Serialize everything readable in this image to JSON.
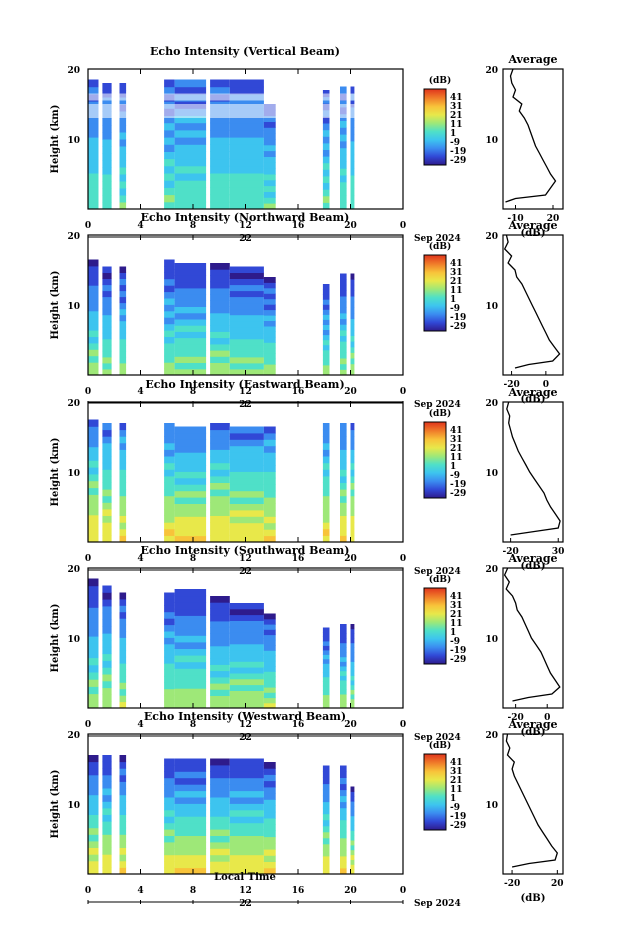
{
  "colors": {
    "colormap": [
      "#2e1b8c",
      "#3148d6",
      "#3b8cf0",
      "#3dc4ef",
      "#4fe0c8",
      "#9ee878",
      "#e8e84a",
      "#f8c33a",
      "#f07e2a",
      "#e0341c"
    ],
    "frame": "#000000",
    "profile": "#000000"
  },
  "chart_data": [
    {
      "type": "heatmap",
      "title": "Echo Intensity (Vertical Beam)",
      "ylabel": "Height (km)",
      "ylim": [
        0,
        20
      ],
      "yticks": [
        "20",
        "10"
      ],
      "xlim": [
        0,
        24
      ],
      "xticks": [
        "0",
        "4",
        "8",
        "12",
        "16",
        "20",
        "0"
      ],
      "date_day": "22",
      "date_month": "Sep 2024",
      "colorbar_unit": "(dB)",
      "colorbar_ticks": [
        "41",
        "31",
        "21",
        "11",
        "1",
        "-9",
        "-19",
        "-29"
      ],
      "clim": [
        -29,
        41
      ],
      "segments": [
        [
          0,
          0.8,
          18.5
        ],
        [
          1.1,
          1.8,
          18
        ],
        [
          2.4,
          2.9,
          18
        ],
        [
          5.8,
          6.6,
          18.5
        ],
        [
          6.6,
          9.0,
          18.5
        ],
        [
          9.3,
          10.8,
          18.5
        ],
        [
          10.8,
          13.4,
          18.5
        ],
        [
          13.4,
          14.3,
          15
        ],
        [
          17.9,
          18.4,
          17
        ],
        [
          19.2,
          19.7,
          17.5
        ],
        [
          20.0,
          20.3,
          17.5
        ]
      ],
      "bottom_db": 5,
      "top_db": -18,
      "gap_bands": [
        [
          13,
          15
        ],
        [
          15.5,
          16.5
        ]
      ],
      "profile": {
        "title": "Average",
        "xlabel": "(dB)",
        "xticks": [
          "-10",
          "20"
        ],
        "tick_values": [
          -10,
          20
        ],
        "xlim": [
          -20,
          28
        ],
        "x": [
          -12,
          -14,
          -13,
          -10,
          -12,
          -5,
          -7,
          -3,
          0,
          2,
          4,
          6,
          9,
          12,
          15,
          18,
          22,
          18,
          14,
          -10,
          -18
        ],
        "y": [
          20,
          19,
          18,
          17,
          16,
          15,
          14,
          13,
          12,
          11,
          10,
          9,
          8,
          7,
          6,
          5,
          4,
          3,
          2,
          1.5,
          1
        ]
      }
    },
    {
      "type": "heatmap",
      "title": "Echo Intensity (Northward Beam)",
      "ylabel": "Height (km)",
      "ylim": [
        0,
        20
      ],
      "yticks": [
        "20",
        "10"
      ],
      "xlim": [
        0,
        24
      ],
      "xticks": [
        "0",
        "4",
        "8",
        "12",
        "16",
        "20",
        "0"
      ],
      "date_day": "22",
      "date_month": "Sep 2024",
      "colorbar_unit": "(dB)",
      "colorbar_ticks": [
        "41",
        "31",
        "21",
        "11",
        "1",
        "-9",
        "-19",
        "-29"
      ],
      "clim": [
        -29,
        41
      ],
      "segments": [
        [
          0,
          0.8,
          16.5
        ],
        [
          1.1,
          1.8,
          15.5
        ],
        [
          2.4,
          2.9,
          15.5
        ],
        [
          5.8,
          6.6,
          16.5
        ],
        [
          6.6,
          9.0,
          16
        ],
        [
          9.3,
          10.8,
          16
        ],
        [
          10.8,
          13.4,
          15.5
        ],
        [
          13.4,
          14.3,
          14
        ],
        [
          17.9,
          18.4,
          13
        ],
        [
          19.2,
          19.7,
          14.5
        ],
        [
          20.0,
          20.3,
          14.5
        ]
      ],
      "bottom_db": 10,
      "top_db": -22,
      "gap_bands": [],
      "profile": {
        "title": "Average",
        "xlabel": "(dB)",
        "xticks": [
          "-20",
          "0"
        ],
        "tick_values": [
          -20,
          0
        ],
        "xlim": [
          -25,
          10
        ],
        "x": [
          -23,
          -22,
          -24,
          -20,
          -22,
          -18,
          -17,
          -14,
          -12,
          -10,
          -8,
          -6,
          -4,
          -2,
          0,
          2,
          5,
          8,
          4,
          -10,
          -18
        ],
        "y": [
          20,
          19,
          18,
          17,
          16,
          15,
          14,
          13,
          12,
          11,
          10,
          9,
          8,
          7,
          6,
          5,
          4,
          3,
          2,
          1.5,
          1
        ]
      }
    },
    {
      "type": "heatmap",
      "title": "Echo Intensity (Eastward Beam)",
      "ylabel": "Height (km)",
      "ylim": [
        0,
        20
      ],
      "yticks": [
        "20",
        "10"
      ],
      "xlim": [
        0,
        24
      ],
      "xticks": [
        "0",
        "4",
        "8",
        "12",
        "16",
        "20",
        "0"
      ],
      "date_day": "22",
      "date_month": "Sep 2024",
      "colorbar_unit": "(dB)",
      "colorbar_ticks": [
        "41",
        "31",
        "21",
        "11",
        "1",
        "-9",
        "-19",
        "-29"
      ],
      "clim": [
        -29,
        41
      ],
      "segments": [
        [
          0,
          0.8,
          17.5
        ],
        [
          1.1,
          1.8,
          17
        ],
        [
          2.4,
          2.9,
          17
        ],
        [
          5.8,
          6.6,
          17
        ],
        [
          6.6,
          9.0,
          16.5
        ],
        [
          9.3,
          10.8,
          17
        ],
        [
          10.8,
          13.4,
          16.5
        ],
        [
          13.4,
          14.3,
          16.5
        ],
        [
          17.9,
          18.4,
          17
        ],
        [
          19.2,
          19.7,
          17
        ],
        [
          20.0,
          20.3,
          17
        ]
      ],
      "bottom_db": 20,
      "top_db": -15,
      "gap_bands": [],
      "profile": {
        "title": "Average",
        "xlabel": "(dB)",
        "xticks": [
          "-20",
          "30"
        ],
        "tick_values": [
          -20,
          30
        ],
        "xlim": [
          -28,
          35
        ],
        "x": [
          -22,
          -24,
          -21,
          -22,
          -20,
          -18,
          -15,
          -12,
          -8,
          -4,
          0,
          5,
          10,
          15,
          18,
          22,
          27,
          32,
          30,
          5,
          -20
        ],
        "y": [
          20,
          19,
          18,
          17,
          16,
          15,
          14,
          13,
          12,
          11,
          10,
          9,
          8,
          7,
          6,
          5,
          4,
          3,
          2,
          1.5,
          1
        ]
      }
    },
    {
      "type": "heatmap",
      "title": "Echo Intensity (Southward Beam)",
      "ylabel": "Height (km)",
      "ylim": [
        0,
        20
      ],
      "yticks": [
        "20",
        "10"
      ],
      "xlim": [
        0,
        24
      ],
      "xticks": [
        "0",
        "4",
        "8",
        "12",
        "16",
        "20",
        "0"
      ],
      "date_day": "22",
      "date_month": "Sep 2024",
      "colorbar_unit": "(dB)",
      "colorbar_ticks": [
        "41",
        "31",
        "21",
        "11",
        "1",
        "-9",
        "-19",
        "-29"
      ],
      "clim": [
        -29,
        41
      ],
      "segments": [
        [
          0,
          0.8,
          18.5
        ],
        [
          1.1,
          1.8,
          17.5
        ],
        [
          2.4,
          2.9,
          16.5
        ],
        [
          5.8,
          6.6,
          16.5
        ],
        [
          6.6,
          9.0,
          17
        ],
        [
          9.3,
          10.8,
          16
        ],
        [
          10.8,
          13.4,
          15
        ],
        [
          13.4,
          14.3,
          13.5
        ],
        [
          17.9,
          18.4,
          11.5
        ],
        [
          19.2,
          19.7,
          12
        ],
        [
          20.0,
          20.3,
          12
        ]
      ],
      "bottom_db": 12,
      "top_db": -22,
      "gap_bands": [],
      "profile": {
        "title": "Average",
        "xlabel": "(dB)",
        "xticks": [
          "-20",
          "0"
        ],
        "tick_values": [
          -20,
          0
        ],
        "xlim": [
          -28,
          10
        ],
        "x": [
          -25,
          -27,
          -24,
          -26,
          -22,
          -20,
          -19,
          -16,
          -14,
          -12,
          -10,
          -7,
          -4,
          -2,
          0,
          2,
          5,
          8,
          3,
          -12,
          -22
        ],
        "y": [
          20,
          19,
          18,
          17,
          16,
          15,
          14,
          13,
          12,
          11,
          10,
          9,
          8,
          7,
          6,
          5,
          4,
          3,
          2,
          1.5,
          1
        ]
      }
    },
    {
      "type": "heatmap",
      "title": "Echo Intensity (Westward Beam)",
      "ylabel": "Height (km)",
      "ylim": [
        0,
        20
      ],
      "yticks": [
        "20",
        "10"
      ],
      "xlim": [
        0,
        24
      ],
      "xticks": [
        "0",
        "4",
        "8",
        "12",
        "16",
        "20",
        "0"
      ],
      "date_day": "22",
      "date_month": "Sep 2024",
      "colorbar_unit": "(dB)",
      "colorbar_ticks": [
        "41",
        "31",
        "21",
        "11",
        "1",
        "-9",
        "-19",
        "-29"
      ],
      "clim": [
        -29,
        41
      ],
      "segments": [
        [
          0,
          0.8,
          17
        ],
        [
          1.1,
          1.8,
          17
        ],
        [
          2.4,
          2.9,
          17
        ],
        [
          5.8,
          6.6,
          16.5
        ],
        [
          6.6,
          9.0,
          16.5
        ],
        [
          9.3,
          10.8,
          16.5
        ],
        [
          10.8,
          13.4,
          16.5
        ],
        [
          13.4,
          14.3,
          16
        ],
        [
          17.9,
          18.4,
          15.5
        ],
        [
          19.2,
          19.7,
          15.5
        ],
        [
          20.0,
          20.3,
          12.5
        ]
      ],
      "bottom_db": 20,
      "top_db": -22,
      "gap_bands": [],
      "profile": {
        "title": "Average",
        "xlabel": "(dB)",
        "xticks": [
          "-20",
          "20"
        ],
        "tick_values": [
          -20,
          20
        ],
        "xlim": [
          -28,
          25
        ],
        "x": [
          -24,
          -25,
          -22,
          -24,
          -18,
          -20,
          -18,
          -15,
          -12,
          -9,
          -6,
          -3,
          0,
          3,
          7,
          11,
          15,
          20,
          18,
          -5,
          -20
        ],
        "y": [
          20,
          19,
          18,
          17,
          16,
          15,
          14,
          13,
          12,
          11,
          10,
          9,
          8,
          7,
          6,
          5,
          4,
          3,
          2,
          1.5,
          1
        ]
      }
    }
  ],
  "footer": {
    "xlabel": "Local Time"
  }
}
